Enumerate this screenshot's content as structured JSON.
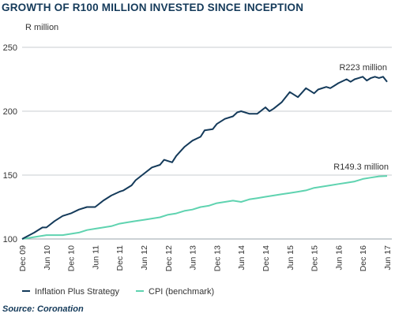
{
  "chart_data": {
    "type": "line",
    "title": "GROWTH OF R100 MILLION INVESTED SINCE INCEPTION",
    "ylabel": "R million",
    "ylim": [
      100,
      250
    ],
    "yticks": [
      "100",
      "150",
      "200",
      "250"
    ],
    "xlabels": [
      "Dec 09",
      "Jun 10",
      "Dec 10",
      "Jun 11",
      "Dec 11",
      "Jun 12",
      "Dec 12",
      "Jun 13",
      "Dec 13",
      "Jun 14",
      "Dec 14",
      "Jun 15",
      "Dec 15",
      "Jun 16",
      "Dec 16",
      "Jun 17"
    ],
    "grid": true,
    "legend_position": "bottom",
    "series": [
      {
        "name": "Inflation Plus Strategy",
        "color": "#143a5a",
        "end_label": "R223 million",
        "x": [
          0,
          3,
          5,
          6,
          8,
          10,
          12,
          14,
          16,
          18,
          20,
          22,
          24,
          25,
          27,
          28,
          30,
          32,
          34,
          35,
          37,
          38,
          40,
          42,
          44,
          45,
          47,
          48,
          50,
          52,
          53,
          54,
          56,
          58,
          60,
          61,
          62,
          64,
          66,
          68,
          70,
          72,
          73,
          75,
          76,
          77,
          78,
          80,
          81,
          82,
          83,
          84,
          85,
          86,
          87,
          88,
          89,
          90
        ],
        "values": [
          100,
          105,
          109,
          109,
          114,
          118,
          120,
          123,
          125,
          125,
          130,
          134,
          137,
          138,
          142,
          146,
          151,
          156,
          158,
          162,
          160,
          165,
          172,
          177,
          180,
          185,
          186,
          190,
          194,
          196,
          199,
          200,
          198,
          198,
          203,
          200,
          202,
          207,
          215,
          211,
          218,
          214,
          217,
          219,
          218,
          220,
          222,
          225,
          223,
          225,
          226,
          227,
          224,
          226,
          227,
          226,
          227,
          223
        ]
      },
      {
        "name": "CPI (benchmark)",
        "color": "#5fd3b0",
        "end_label": "R149.3 million",
        "x": [
          0,
          2,
          4,
          6,
          10,
          12,
          14,
          16,
          18,
          20,
          22,
          24,
          26,
          28,
          30,
          32,
          34,
          36,
          38,
          40,
          42,
          44,
          46,
          48,
          50,
          52,
          54,
          56,
          58,
          60,
          62,
          64,
          66,
          68,
          70,
          72,
          74,
          76,
          78,
          80,
          82,
          84,
          86,
          88,
          90
        ],
        "values": [
          100,
          101,
          102,
          103,
          103,
          104,
          105,
          107,
          108,
          109,
          110,
          112,
          113,
          114,
          115,
          116,
          117,
          119,
          120,
          122,
          123,
          125,
          126,
          128,
          129,
          130,
          129,
          131,
          132,
          133,
          134,
          135,
          136,
          137,
          138,
          140,
          141,
          142,
          143,
          144,
          145,
          147,
          148,
          149,
          149.3
        ]
      }
    ]
  },
  "source": "Source: Coronation"
}
